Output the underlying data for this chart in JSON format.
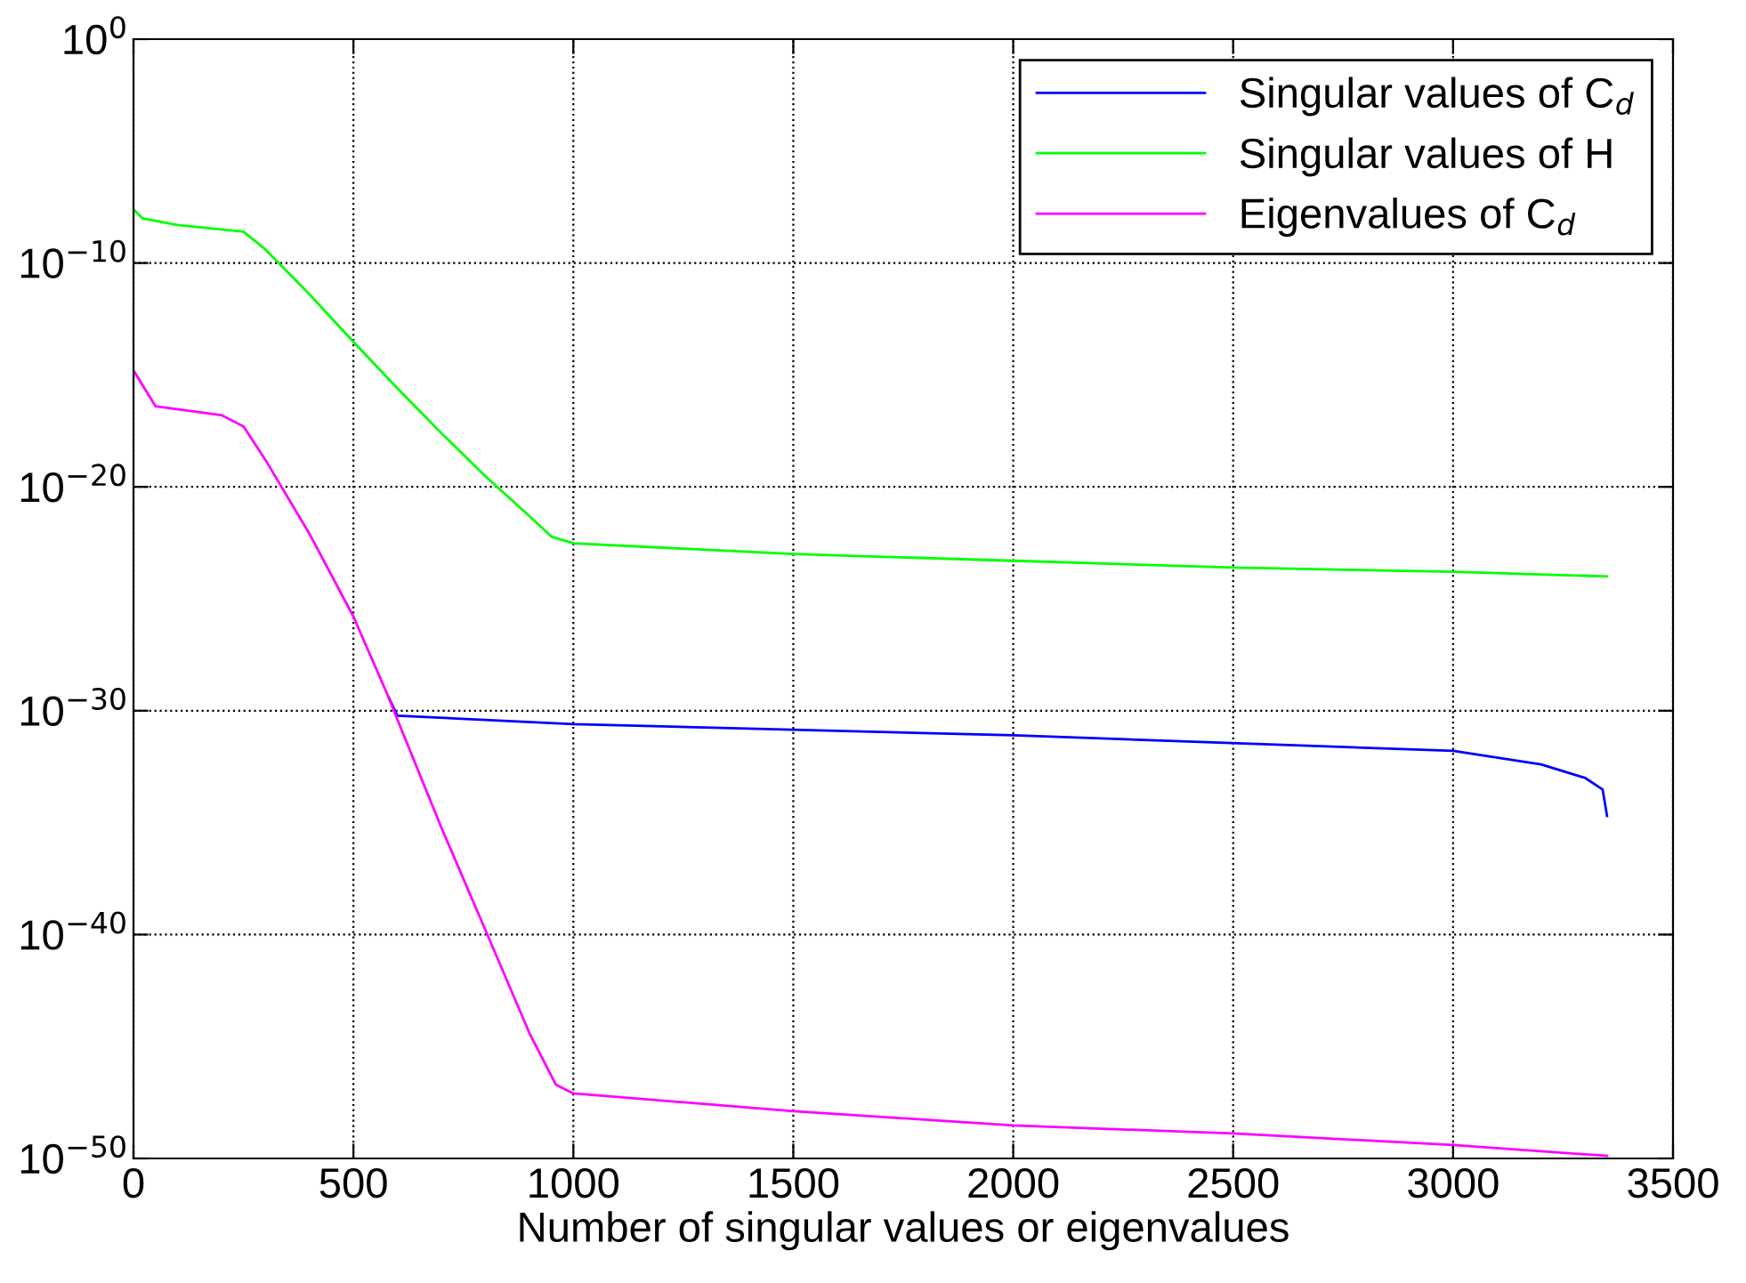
{
  "chart_data": {
    "type": "line",
    "xlabel": "Number of singular values or eigenvalues",
    "series": [
      {
        "name": "Singular values of C$_{d}$",
        "color": "#0000ff",
        "x": [
          580,
          600,
          1000,
          2000,
          3000,
          3200,
          3300,
          3340,
          3350
        ],
        "values": [
          4e-30,
          6e-31,
          2.5e-31,
          8e-32,
          1.6e-32,
          4e-33,
          1e-33,
          3e-34,
          2e-35
        ]
      },
      {
        "name": "Singular values of H",
        "color": "#00ff00",
        "x": [
          0,
          20,
          100,
          250,
          300,
          400,
          500,
          600,
          700,
          800,
          900,
          950,
          1000,
          1500,
          2000,
          2500,
          3000,
          3350
        ],
        "values": [
          2.5e-08,
          1e-08,
          5e-09,
          2.5e-09,
          4e-10,
          4e-12,
          3e-14,
          2.5e-16,
          2.5e-18,
          3e-20,
          5e-22,
          6e-23,
          3e-23,
          1e-23,
          5e-24,
          2.5e-24,
          1.6e-24,
          1e-24
        ]
      },
      {
        "name": "Eigenvalues of C$_{d}$",
        "color": "#ff00ff",
        "x": [
          0,
          50,
          200,
          250,
          300,
          400,
          500,
          580,
          600,
          700,
          800,
          900,
          960,
          1000,
          1500,
          2000,
          2500,
          3000,
          3350
        ],
        "values": [
          1.6e-15,
          4e-17,
          1.6e-17,
          5e-18,
          1.6e-19,
          8e-23,
          1.6e-26,
          4e-30,
          4e-31,
          6e-36,
          1.6e-40,
          4e-45,
          2e-47,
          8e-48,
          1.3e-48,
          3e-49,
          1.3e-49,
          4e-50,
          1.3e-50
        ]
      }
    ],
    "xlim": [
      0,
      3500
    ],
    "xticks": [
      0,
      500,
      1000,
      1500,
      2000,
      2500,
      3000,
      3500
    ],
    "log": "y",
    "ylim": [
      1e-50,
      1
    ],
    "yticks": [
      {
        "value": 1e-50,
        "label": "10$^{−50}$"
      },
      {
        "value": 1e-40,
        "label": "10$^{−40}$"
      },
      {
        "value": 1e-30,
        "label": "10$^{−30}$"
      },
      {
        "value": 1e-20,
        "label": "10$^{−20}$"
      },
      {
        "value": 1e-10,
        "label": "10$^{−10}$"
      },
      {
        "value": 1,
        "label": "10$^{0}$"
      }
    ],
    "grid": true,
    "legend": "top right",
    "marker": "none",
    "line_style": "solid"
  }
}
